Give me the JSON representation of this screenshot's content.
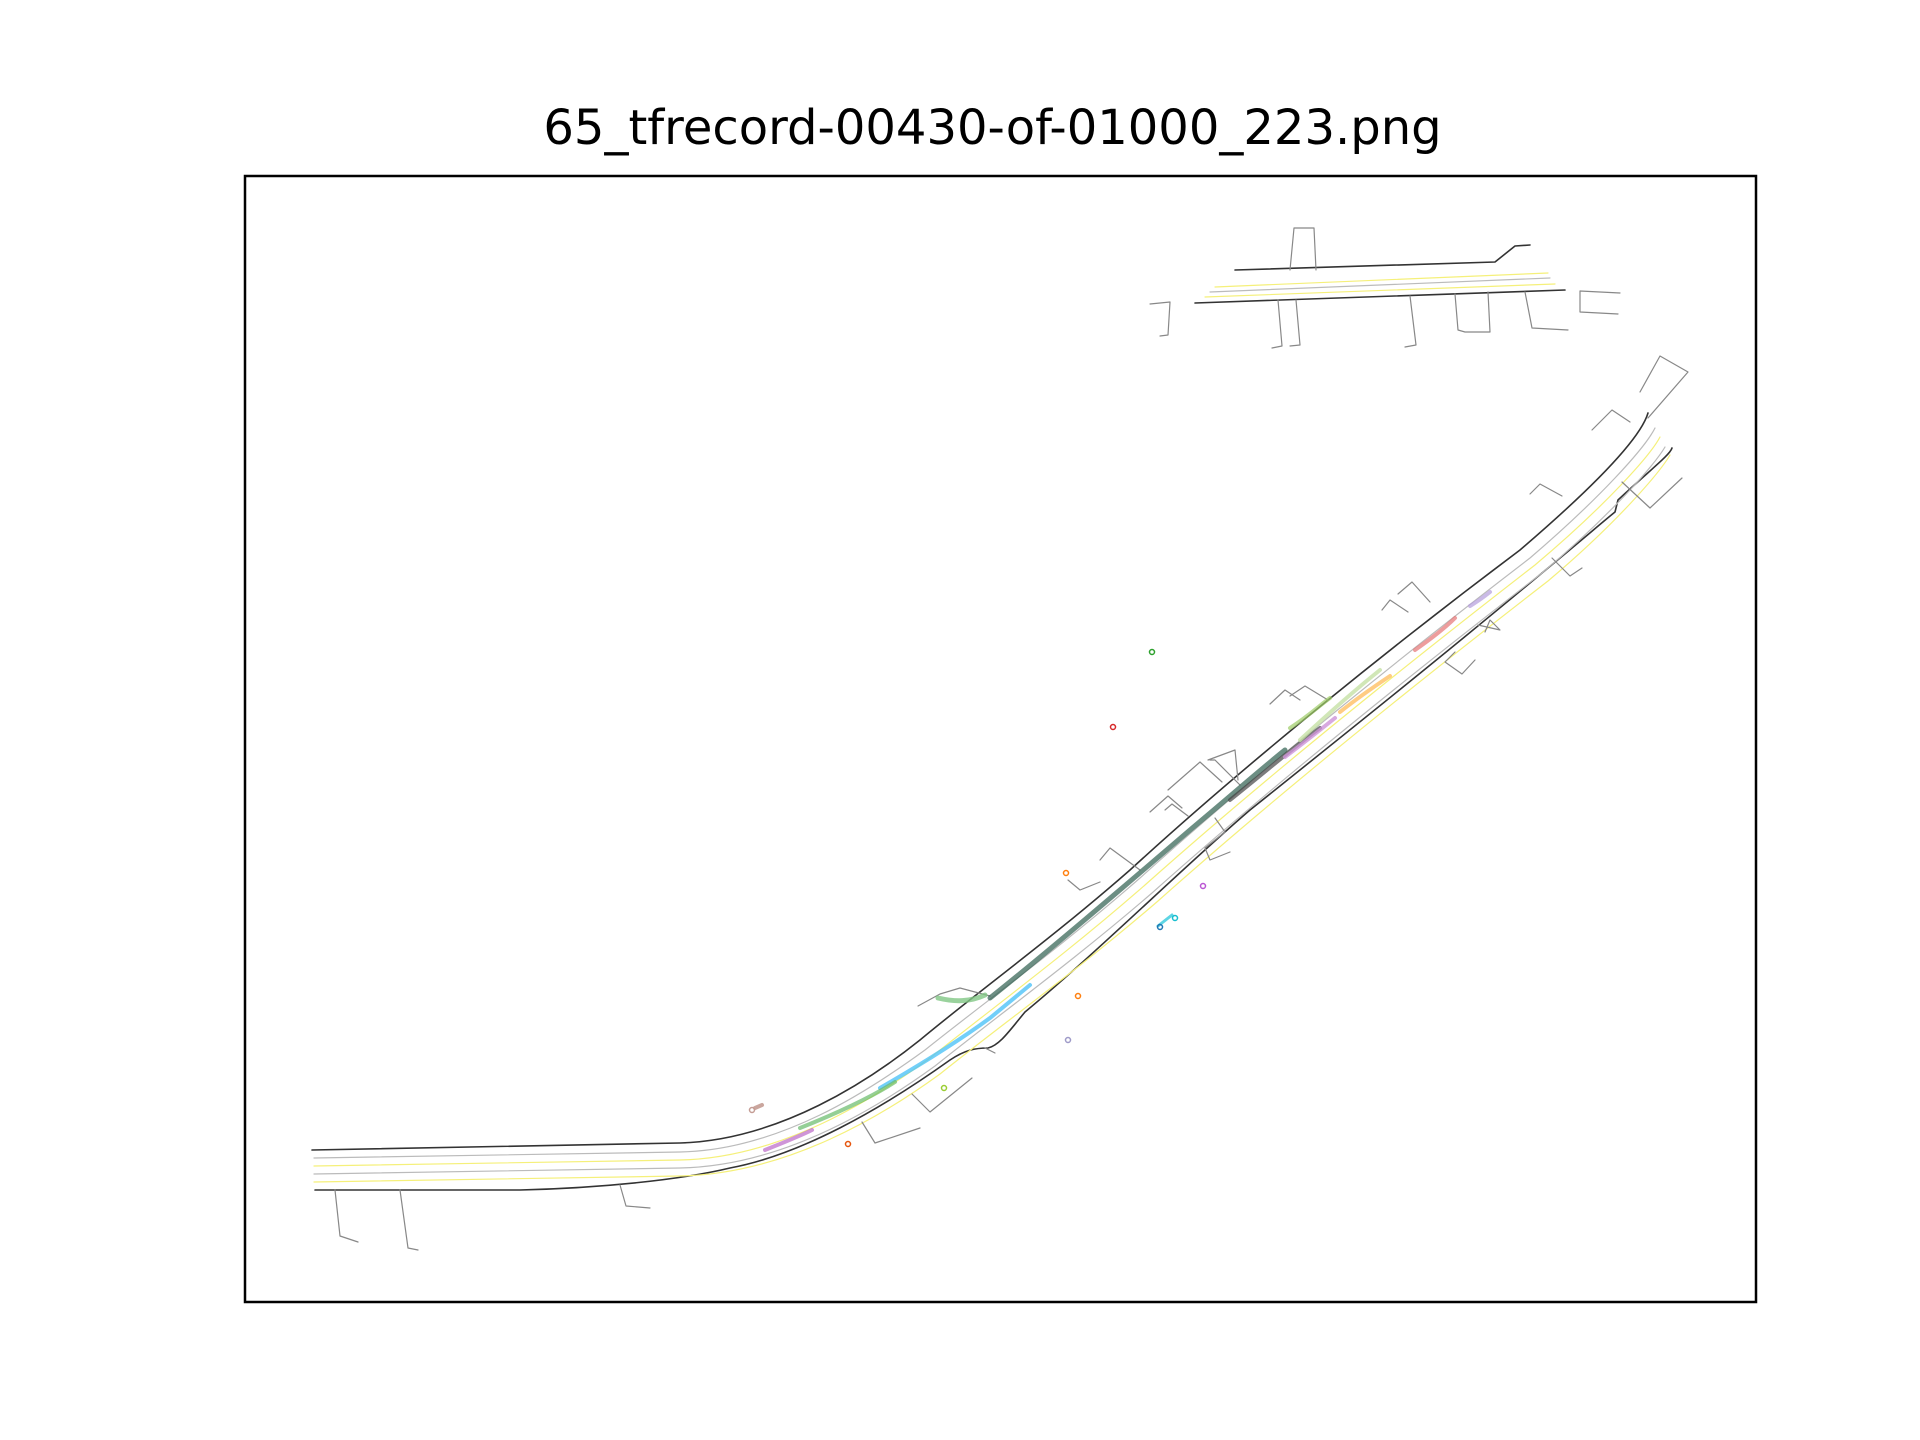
{
  "title": "65_tfrecord-00430-of-01000_223.png",
  "colors": {
    "road_edge": "#555555",
    "lane_center": "#c0c0c0",
    "lane_divider": "#f7f48a",
    "driveway": "#8a8a8a",
    "frame": "#000000"
  },
  "chart_data": {
    "type": "scatter",
    "title": "65_tfrecord-00430-of-01000_223.png",
    "xlabel": "",
    "ylabel": "",
    "grid": false,
    "axes_ticks": false,
    "agent_tracks": [
      {
        "color": "#2e8b57",
        "kind": "trajectory",
        "side": "upper-left carriageway"
      },
      {
        "color": "#4fc3f7",
        "kind": "trajectory",
        "side": "middle lane"
      },
      {
        "color": "#66bb6a",
        "kind": "trajectory",
        "side": "lower lane"
      },
      {
        "color": "#ba68c8",
        "kind": "trajectory",
        "side": "lower lane"
      },
      {
        "color": "#e57373",
        "kind": "trajectory",
        "side": "lower lane"
      },
      {
        "color": "#ffb74d",
        "kind": "trajectory",
        "side": "lower lane"
      },
      {
        "color": "#81c784",
        "kind": "trajectory",
        "side": "turning left"
      }
    ],
    "markers": [
      {
        "color": "#2ca02c"
      },
      {
        "color": "#d62728"
      },
      {
        "color": "#ff7f0e"
      },
      {
        "color": "#ba55d3"
      },
      {
        "color": "#17becf"
      },
      {
        "color": "#1f77b4"
      },
      {
        "color": "#ff7f0e"
      },
      {
        "color": "#9e9ac8"
      },
      {
        "color": "#9acd32"
      },
      {
        "color": "#e6550d"
      },
      {
        "color": "#c49c94"
      }
    ]
  }
}
